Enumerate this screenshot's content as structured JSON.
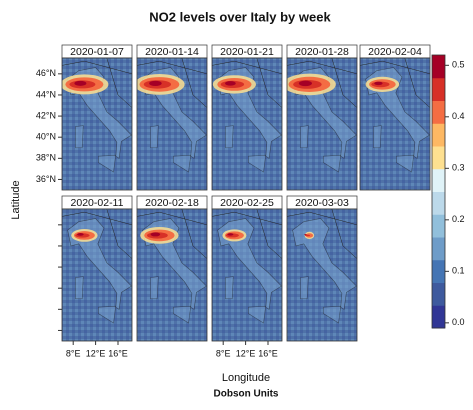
{
  "chart_data": {
    "type": "map",
    "title": "NO2 levels over Italy by week",
    "panels": [
      "2020-01-07",
      "2020-01-14",
      "2020-01-21",
      "2020-01-28",
      "2020-02-04",
      "2020-02-11",
      "2020-02-18",
      "2020-02-25",
      "2020-03-03"
    ],
    "xlabel": "Longitude",
    "ylabel": "Latitude",
    "colorbar_label": "Dobson Units",
    "xlim": [
      6,
      18.5
    ],
    "xticks": [
      {
        "value": 8,
        "label": "8°E"
      },
      {
        "value": 12,
        "label": "12°E"
      },
      {
        "value": 16,
        "label": "16°E"
      }
    ],
    "ylim": [
      35,
      47.5
    ],
    "yticks": [
      {
        "value": 36,
        "label": "36°N"
      },
      {
        "value": 38,
        "label": "38°N"
      },
      {
        "value": 40,
        "label": "40°N"
      },
      {
        "value": 42,
        "label": "42°N"
      },
      {
        "value": 44,
        "label": "44°N"
      },
      {
        "value": 46,
        "label": "46°N"
      }
    ],
    "colorbar": {
      "lim": [
        -0.01,
        0.52
      ],
      "ticks": [
        {
          "value": 0,
          "label": "0.0"
        },
        0.1,
        0.2,
        0.3,
        0.4,
        0.5
      ],
      "colors": [
        "#313695",
        "#3e5a9e",
        "#4575b4",
        "#6e9cc8",
        "#91bfdb",
        "#bcd9ea",
        "#e0f3f8",
        "#fee090",
        "#fdb863",
        "#f46d43",
        "#d73027",
        "#a50026"
      ]
    }
  }
}
